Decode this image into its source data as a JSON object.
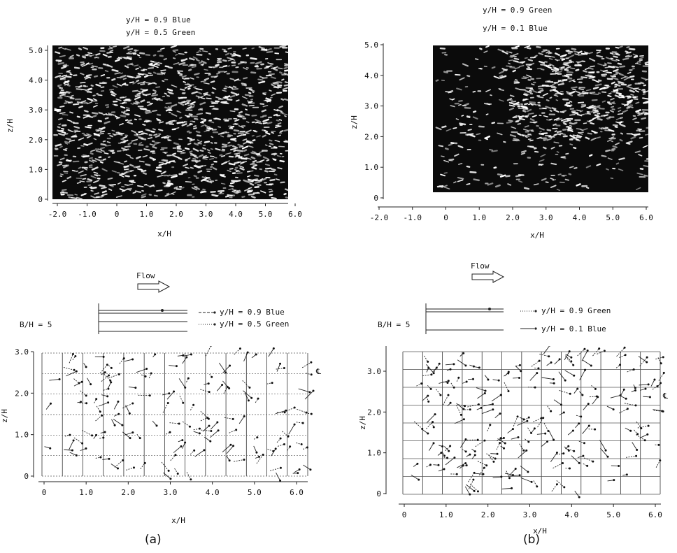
{
  "panels": {
    "a": {
      "caption": "(a)",
      "photo": {
        "legend": [
          "y/H = 0.9  Blue",
          "y/H = 0.5  Green"
        ],
        "xlabel": "x/H",
        "ylabel": "z/H",
        "xticks": [
          "-2.0",
          "-1.0",
          "0",
          "1.0",
          "2.0",
          "3.0",
          "4.0",
          "5.0",
          "6.0"
        ],
        "yticks": [
          "0",
          "1.0",
          "2.0",
          "3.0",
          "4.0",
          "5.0"
        ]
      },
      "vector": {
        "flow_label": "Flow",
        "bh_label": "B/H = 5",
        "legend": [
          "y/H = 0.9  Blue",
          "y/H = 0.5  Green"
        ],
        "xlabel": "x/H",
        "ylabel": "z/H",
        "xticks": [
          "0",
          "1.0",
          "2.0",
          "3.0",
          "4.0",
          "5.0",
          "6.0"
        ],
        "yticks": [
          "0",
          "1.0",
          "2.0",
          "3.0"
        ],
        "centerline_symbol": "℄"
      }
    },
    "b": {
      "caption": "(b)",
      "photo": {
        "legend": [
          "y/H = 0.9  Green",
          "y/H = 0.1  Blue"
        ],
        "xlabel": "x/H",
        "ylabel": "z/H",
        "xticks": [
          "-2.0",
          "-1.0",
          "0",
          "1.0",
          "2.0",
          "3.0",
          "4.0",
          "5.0",
          "6.0"
        ],
        "yticks": [
          "0",
          "1.0",
          "2.0",
          "3.0",
          "4.0",
          "5.0"
        ]
      },
      "vector": {
        "flow_label": "Flow",
        "bh_label": "B/H = 5",
        "legend": [
          "y/H = 0.9  Green",
          "y/H = 0.1  Blue"
        ],
        "xlabel": "x/H",
        "ylabel": "z/H",
        "xticks": [
          "0",
          "1.0",
          "2.0",
          "3.0",
          "4.0",
          "5.0",
          "6.0"
        ],
        "yticks": [
          "0",
          "1.0",
          "2.0",
          "3.0"
        ],
        "centerline_symbol": "℄"
      }
    }
  }
}
